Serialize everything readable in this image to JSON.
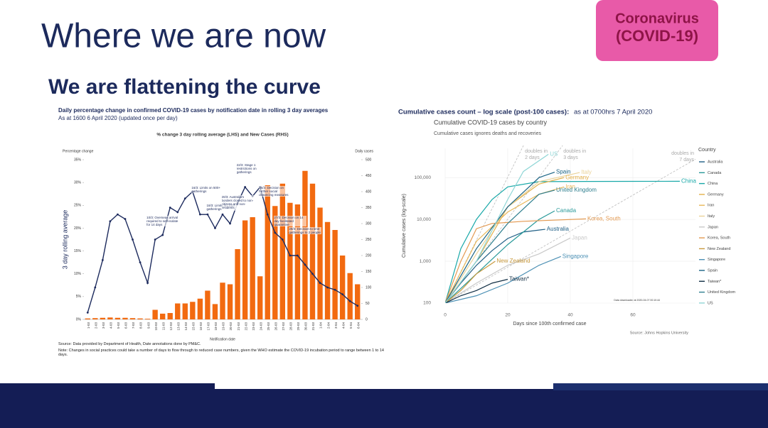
{
  "slide": {
    "title": "Where we are now",
    "subtitle": "We are flattening the curve",
    "badge": [
      "Coronavirus",
      "(COVID-19)"
    ]
  },
  "chart_data": [
    {
      "type": "combo",
      "title": "Daily percentage change in confirmed COVID-19 cases by notification date in rolling 3 day averages",
      "subtitle": "As at 1600 6 April 2020 (updated once per day)",
      "inner_title": "% change 3 day rolling average (LHS) and New Cases (RHS)",
      "y_axis_label": "Percentage change",
      "y2_axis_label": "Daily cases",
      "big_y_label": "3 day rolling average",
      "x_axis_label": "Notification date",
      "categories": [
        "1-03",
        "2-03",
        "3-03",
        "4-03",
        "5-03",
        "6-03",
        "7-03",
        "8-03",
        "9-03",
        "10-03",
        "11-03",
        "12-03",
        "13-03",
        "14-03",
        "15-03",
        "16-03",
        "17-03",
        "18-03",
        "19-03",
        "20-03",
        "21-03",
        "22-03",
        "23-03",
        "24-03",
        "25-03",
        "26-03",
        "27-03",
        "28-03",
        "29-03",
        "30-03",
        "31-03",
        "1-04",
        "2-04",
        "3-04",
        "4-04",
        "5-04",
        "6-04"
      ],
      "series": [
        {
          "type": "bar",
          "axis": "y2",
          "color": "#f26a10",
          "values": [
            3,
            4,
            5,
            6,
            5,
            5,
            4,
            3,
            2,
            30,
            18,
            20,
            50,
            50,
            55,
            65,
            90,
            48,
            115,
            110,
            220,
            310,
            320,
            135,
            420,
            355,
            425,
            365,
            360,
            465,
            425,
            350,
            305,
            280,
            200,
            145,
            110
          ]
        },
        {
          "type": "line",
          "color": "#1d2b5e",
          "values": [
            1.5,
            7,
            13,
            21.5,
            23,
            22,
            17.5,
            12.5,
            8,
            17.5,
            18.5,
            24.5,
            23.5,
            26.5,
            28,
            23,
            23,
            20,
            23,
            21,
            25.5,
            29,
            27,
            29,
            23,
            19,
            17.5,
            14,
            14,
            12,
            10,
            8,
            7,
            6.5,
            5.5,
            4,
            3
          ]
        }
      ],
      "ylim": [
        0,
        35
      ],
      "yticks": [
        {
          "value": 0,
          "label": "0%"
        },
        {
          "value": 5,
          "label": "5%"
        },
        {
          "value": 10,
          "label": "10%"
        },
        {
          "value": 15,
          "label": "15%"
        },
        {
          "value": 20,
          "label": "20%"
        },
        {
          "value": 25,
          "label": "25%"
        },
        {
          "value": 30,
          "label": "30%"
        },
        {
          "value": 35,
          "label": "35%"
        }
      ],
      "y2lim": [
        0,
        500
      ],
      "y2ticks": [
        0,
        50,
        100,
        150,
        200,
        250,
        300,
        350,
        400,
        450,
        500
      ],
      "grid": false,
      "annotations": [
        {
          "at": "10-03",
          "text": "10/3: Overseas arrival required to self-isolate for 14 days"
        },
        {
          "at": "16-03",
          "text": "16/3: Limits on 500+ gatherings"
        },
        {
          "at": "18-03",
          "text": "18/3: Limits on 100+ gatherings"
        },
        {
          "at": "20-03",
          "text": "20/3: Australia's borders closed to non-citizens and non-residents"
        },
        {
          "at": "22-03",
          "text": "22/3: Stage 1 restrictions on gatherings"
        },
        {
          "at": "25-03",
          "text": "25/3: Decision on further social distancing measures"
        },
        {
          "at": "27-03",
          "text": "27/3: Decision on 14 day facilitated quarantine"
        },
        {
          "at": "29-03",
          "text": "29/3: Decision to limit gatherings to 2 people"
        }
      ],
      "source": "Source: Data provided by Department of Health, Date annotations done by PM&C.",
      "note": "Note: Changes in social practices could take a number of days to flow through to reduced case numbers, given the WHO estimate the COVID-19 incubation period to range between 1 to 14 days."
    },
    {
      "type": "logline",
      "heading": "Cumulative cases count – log scale (post-100 cases):",
      "heading_suffix": "as at 0700hrs 7 April 2020",
      "title": "Cumulative COVID-19 cases by country",
      "subtitle": "Cumulative cases ignores deaths and recoveries",
      "y_axis_label": "Cumulative cases (log-scale)",
      "x_axis_label": "Days since 100th confirmed case",
      "source": "Source: Johns Hopkins University",
      "legend_title": "Country",
      "stamp": "Data downloaded at 2020-04-07 00:10:44",
      "log_y": true,
      "grid": true,
      "xlim": [
        0,
        80
      ],
      "xticks": [
        0,
        20,
        40,
        60
      ],
      "ylim": [
        100,
        500000
      ],
      "yticks": [
        100,
        {
          "value": 1000,
          "label": "1,000"
        },
        {
          "value": 10000,
          "label": "10,000"
        },
        {
          "value": 100000,
          "label": "100,000"
        }
      ],
      "doubling_lines": [
        {
          "days": 2,
          "label": [
            "doubles in",
            "2 days"
          ]
        },
        {
          "days": 3,
          "label": [
            "doubles in",
            "3 days"
          ]
        },
        {
          "days": 7,
          "label": [
            "doubles in",
            "7 days"
          ]
        }
      ],
      "series": [
        {
          "name": "Australia",
          "color": "#1f5f85",
          "x": [
            0,
            5,
            10,
            15,
            20,
            25,
            32
          ],
          "values": [
            100,
            300,
            800,
            1800,
            3500,
            5000,
            5800
          ]
        },
        {
          "name": "Canada",
          "color": "#2a9a9a",
          "x": [
            0,
            10,
            20,
            30,
            35
          ],
          "values": [
            100,
            500,
            2500,
            10000,
            16000
          ]
        },
        {
          "name": "China",
          "color": "#18a8a8",
          "x": [
            0,
            5,
            10,
            15,
            20,
            30,
            45,
            70,
            75
          ],
          "values": [
            100,
            2000,
            10000,
            30000,
            60000,
            80000,
            81000,
            81500,
            81700
          ]
        },
        {
          "name": "Germany",
          "color": "#e2b04a",
          "x": [
            0,
            10,
            20,
            30,
            38
          ],
          "values": [
            100,
            1000,
            20000,
            70000,
            100000
          ]
        },
        {
          "name": "Iran",
          "color": "#e9b85a",
          "x": [
            0,
            10,
            20,
            30,
            38
          ],
          "values": [
            100,
            3000,
            15000,
            40000,
            60000
          ]
        },
        {
          "name": "Italy",
          "color": "#ead39a",
          "x": [
            0,
            10,
            20,
            30,
            43
          ],
          "values": [
            100,
            1500,
            20000,
            80000,
            132000
          ]
        },
        {
          "name": "Japan",
          "color": "#c9c9c9",
          "x": [
            0,
            10,
            20,
            30,
            40
          ],
          "values": [
            100,
            300,
            800,
            1500,
            3600
          ]
        },
        {
          "name": "Korea, South",
          "color": "#e39a52",
          "x": [
            0,
            5,
            10,
            15,
            25,
            45
          ],
          "values": [
            100,
            1000,
            6000,
            8000,
            9000,
            10300
          ]
        },
        {
          "name": "New Zealand",
          "color": "#c99a3e",
          "x": [
            0,
            5,
            10,
            16
          ],
          "values": [
            100,
            200,
            500,
            1000
          ]
        },
        {
          "name": "Singapore",
          "color": "#4c90b4",
          "x": [
            0,
            10,
            20,
            30,
            37
          ],
          "values": [
            100,
            150,
            300,
            800,
            1300
          ]
        },
        {
          "name": "Spain",
          "color": "#1a6384",
          "x": [
            0,
            10,
            20,
            30,
            35
          ],
          "values": [
            100,
            2000,
            20000,
            100000,
            135000
          ]
        },
        {
          "name": "Taiwan*",
          "color": "#122f45",
          "x": [
            0,
            5,
            10,
            15,
            20
          ],
          "values": [
            100,
            150,
            200,
            300,
            370
          ]
        },
        {
          "name": "United Kingdom",
          "color": "#2f7f8f",
          "x": [
            0,
            10,
            20,
            30,
            35
          ],
          "values": [
            100,
            1000,
            8000,
            40000,
            50000
          ]
        },
        {
          "name": "US",
          "color": "#8fd6d6",
          "x": [
            0,
            10,
            20,
            25,
            33
          ],
          "values": [
            100,
            1000,
            30000,
            140000,
            360000
          ]
        }
      ]
    }
  ]
}
